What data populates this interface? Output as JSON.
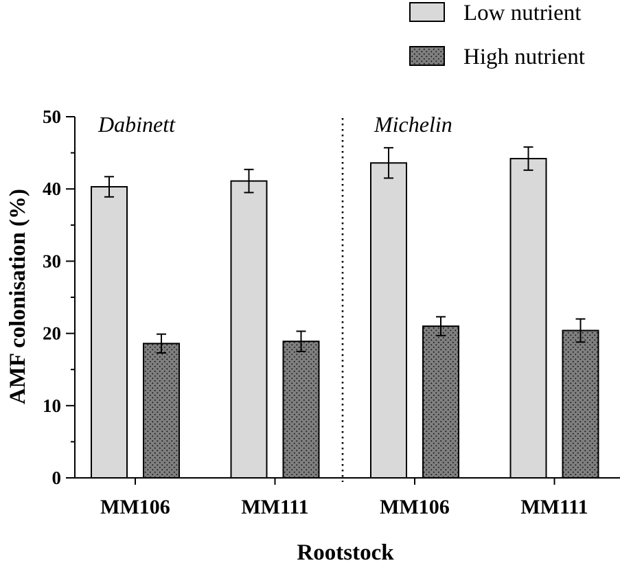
{
  "chart_data": {
    "type": "bar",
    "title": "",
    "xlabel": "Rootstock",
    "ylabel": "AMF colonisation (%)",
    "ylim": [
      0,
      50
    ],
    "yticks": [
      0,
      10,
      20,
      30,
      40,
      50
    ],
    "groups": [
      "Dabinett",
      "Michelin"
    ],
    "categories": [
      "MM106",
      "MM111",
      "MM106",
      "MM111"
    ],
    "category_groups": [
      "Dabinett",
      "Dabinett",
      "Michelin",
      "Michelin"
    ],
    "series": [
      {
        "name": "Low nutrient",
        "color": "#d9d9d9",
        "pattern": "solid",
        "values": [
          40.3,
          41.1,
          43.6,
          44.2
        ],
        "errors": [
          1.4,
          1.6,
          2.1,
          1.6
        ]
      },
      {
        "name": "High nutrient",
        "color": "#7f7f7f",
        "pattern": "dots",
        "values": [
          18.6,
          18.9,
          21.0,
          20.4
        ],
        "errors": [
          1.3,
          1.4,
          1.3,
          1.6
        ]
      }
    ],
    "legend": "top-right",
    "separator": "dotted line between Dabinett and Michelin groups"
  }
}
